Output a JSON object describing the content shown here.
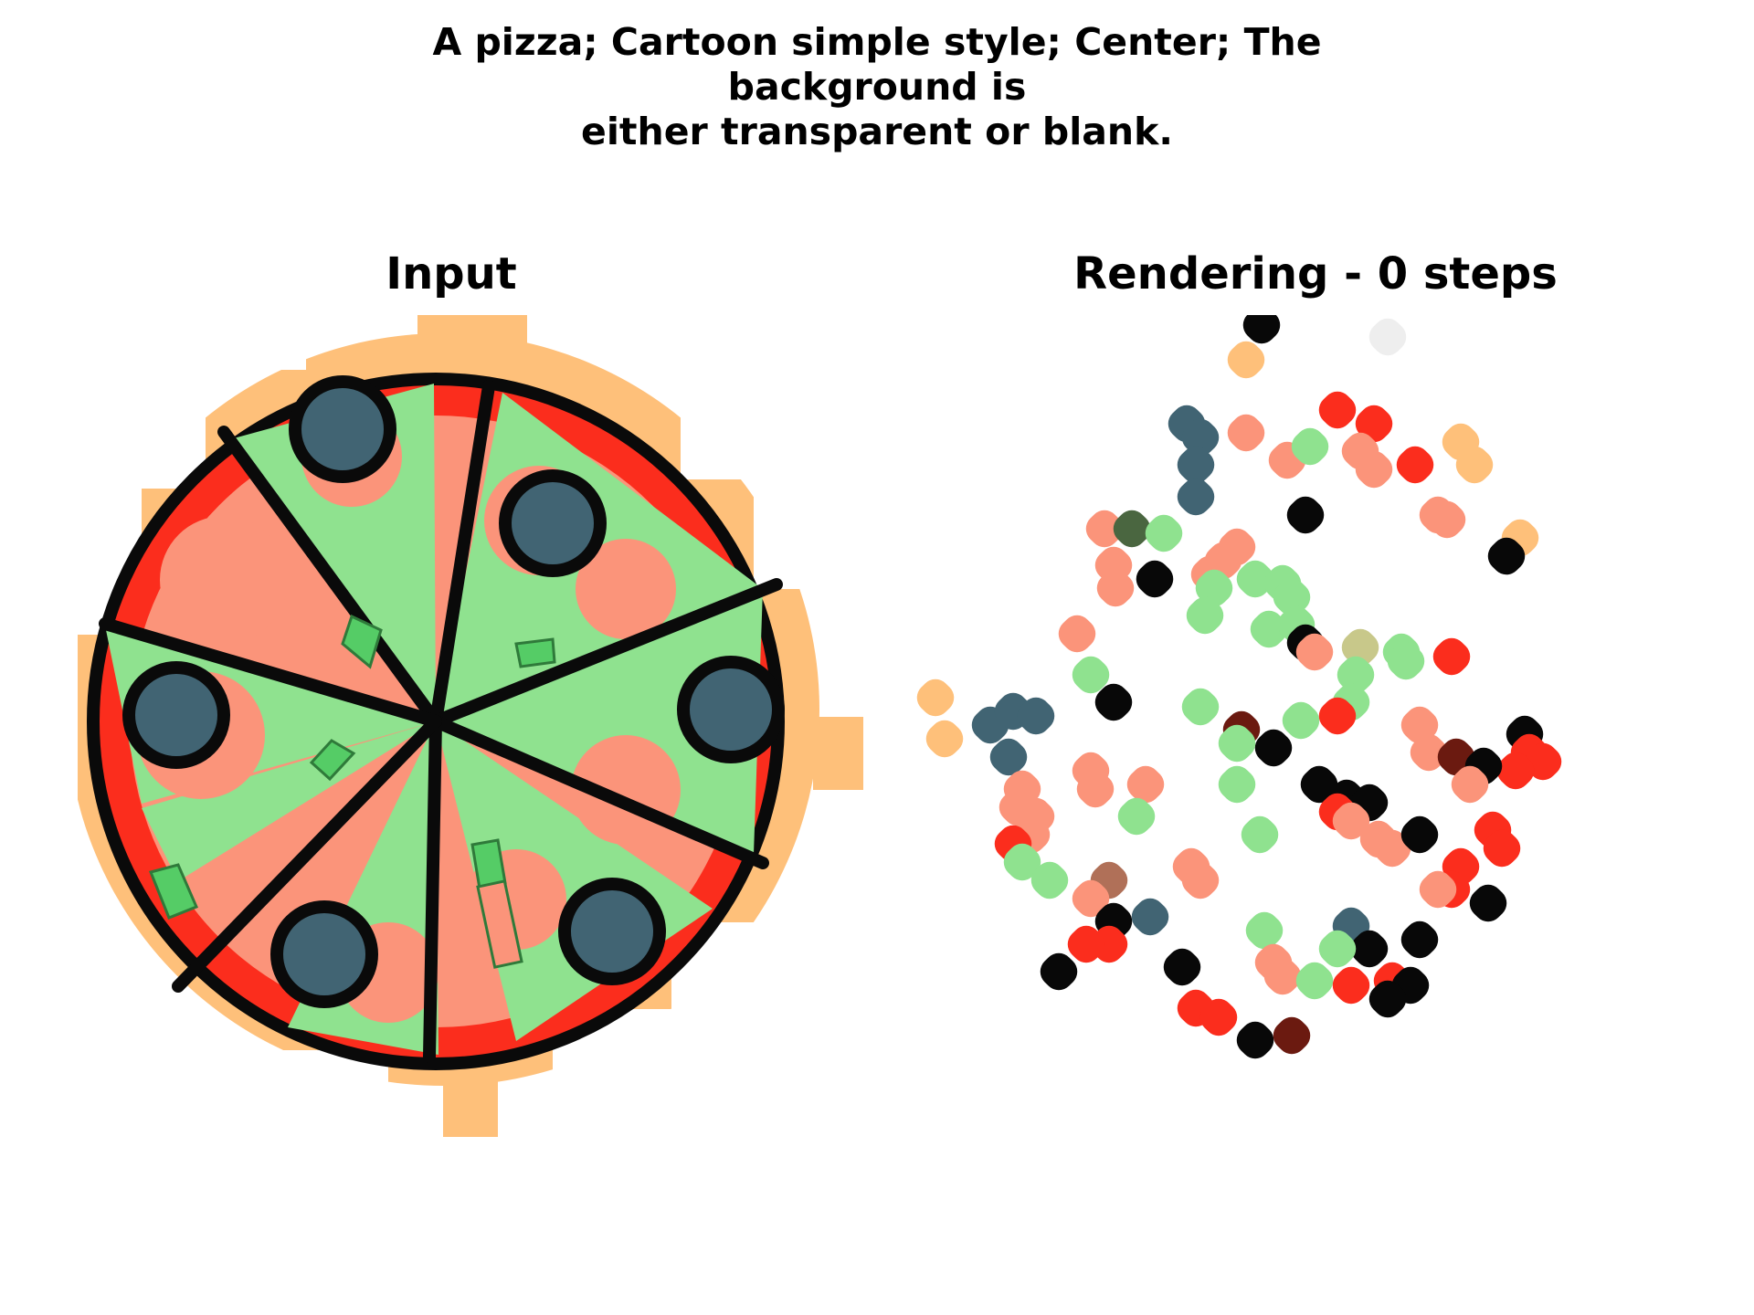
{
  "figure": {
    "title_line1": "A pizza; Cartoon simple style; Center; The background is",
    "title_line2": "either transparent or blank."
  },
  "panels": {
    "input": {
      "title": "Input",
      "image": "cartoon-pizza"
    },
    "rendering": {
      "title": "Rendering - 0 steps",
      "image": "scattered-color-blobs"
    }
  },
  "palette": {
    "crust": "#fec07a",
    "sauce": "#fb2d1d",
    "cheese": "#fb947a",
    "slice_green": "#8fe28f",
    "topping": "#416473",
    "outline": "#0a0a0a",
    "white": "#ffffff"
  }
}
